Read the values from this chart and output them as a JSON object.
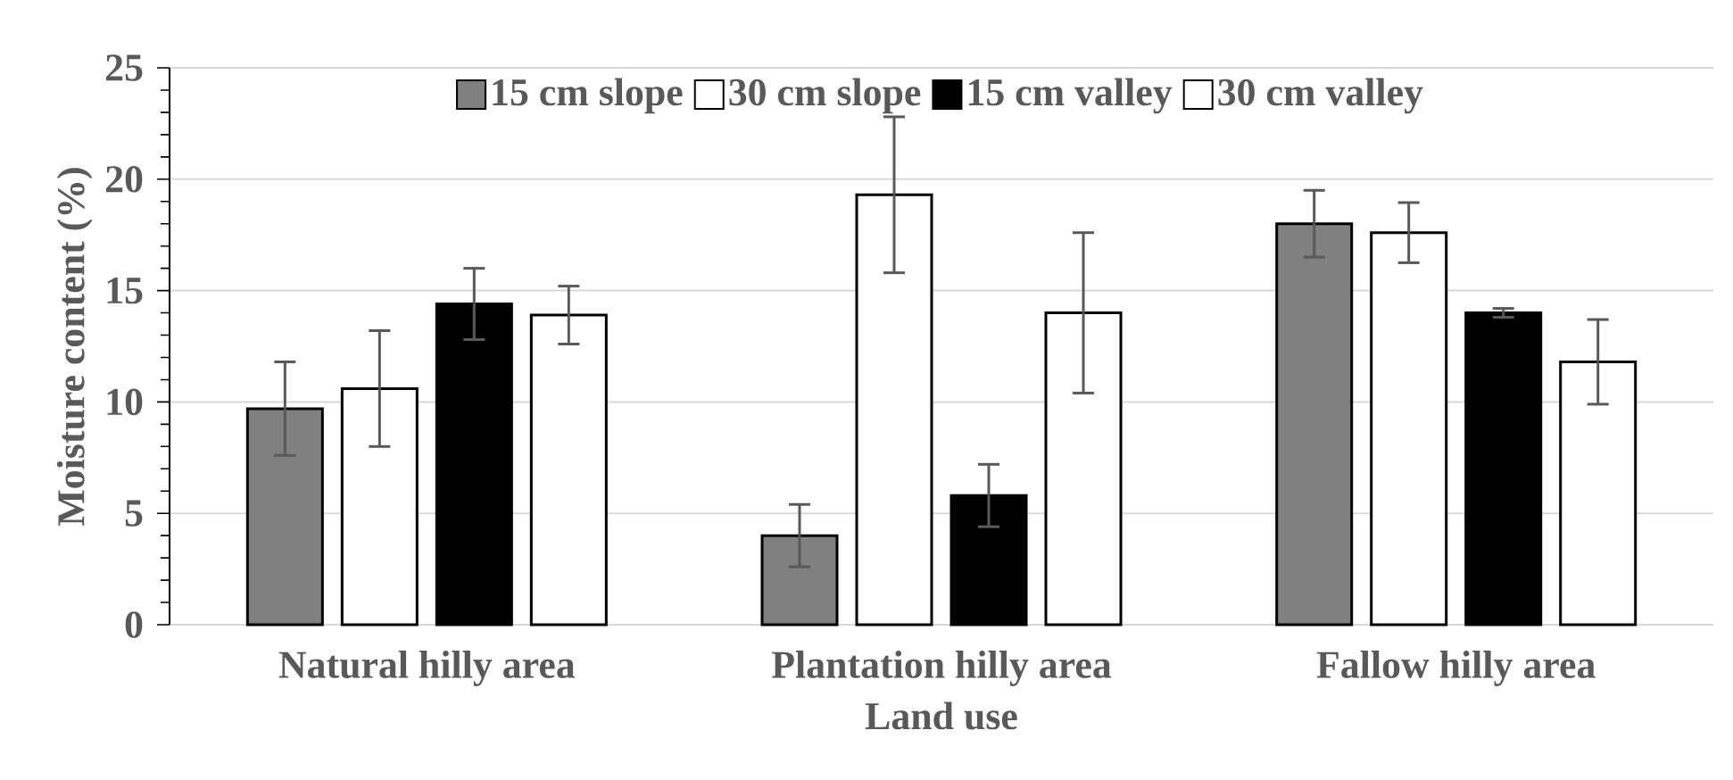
{
  "chart_data": {
    "type": "bar",
    "xlabel": "Land use",
    "ylabel": "Moisture content (%)",
    "categories": [
      "Natural hilly area",
      "Plantation hilly area",
      "Fallow hilly area"
    ],
    "series": [
      {
        "name": "15 cm slope",
        "color": "#808080",
        "values": [
          9.7,
          4.0,
          18.0
        ],
        "errors": [
          2.1,
          1.4,
          1.5
        ]
      },
      {
        "name": "30 cm slope",
        "color": "#ffffff",
        "values": [
          10.6,
          19.3,
          17.6
        ],
        "errors": [
          2.6,
          3.5,
          1.35
        ]
      },
      {
        "name": "15 cm valley",
        "color": "#000000",
        "values": [
          14.4,
          5.8,
          14.0
        ],
        "errors": [
          1.6,
          1.4,
          0.2
        ]
      },
      {
        "name": "30 cm valley",
        "color": "#ffffff",
        "values": [
          13.9,
          14.0,
          11.8
        ],
        "errors": [
          1.3,
          3.6,
          1.9
        ]
      }
    ],
    "ylim": [
      0,
      25
    ],
    "yticks": [
      0,
      5,
      10,
      15,
      20,
      25
    ],
    "grid": "y",
    "legend": "top"
  }
}
